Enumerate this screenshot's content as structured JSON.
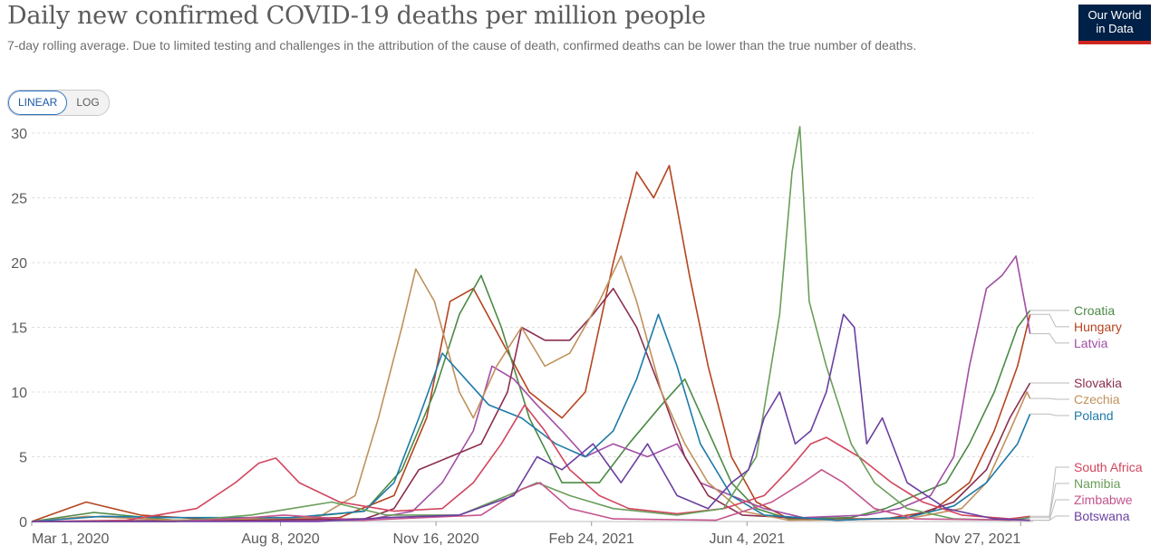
{
  "header": {
    "title": "Daily new confirmed COVID-19 deaths per million people",
    "subtitle": "7-day rolling average. Due to limited testing and challenges in the attribution of the cause of death, confirmed deaths can be lower than the true number of deaths.",
    "logo_line1": "Our World",
    "logo_line2": "in Data"
  },
  "scale_toggle": {
    "linear_label": "LINEAR",
    "log_label": "LOG",
    "selected": "LINEAR"
  },
  "chart_data": {
    "type": "line",
    "title": "Daily new confirmed COVID-19 deaths per million people",
    "xlim": [
      "2020-03-01",
      "2021-12-05"
    ],
    "ylim": [
      0,
      30
    ],
    "y_ticks": [
      0,
      5,
      10,
      15,
      20,
      25,
      30
    ],
    "x_ticks": [
      {
        "date": "2020-03-01",
        "label": "Mar 1, 2020"
      },
      {
        "date": "2020-08-08",
        "label": "Aug 8, 2020"
      },
      {
        "date": "2020-11-16",
        "label": "Nov 16, 2020"
      },
      {
        "date": "2021-02-24",
        "label": "Feb 24, 2021"
      },
      {
        "date": "2021-06-04",
        "label": "Jun 4, 2021"
      },
      {
        "date": "2021-11-27",
        "label": "Nov 27, 2021"
      }
    ],
    "grid": true,
    "series": [
      {
        "name": "Hungary",
        "color": "#b5441f",
        "points": [
          [
            "2020-03-01",
            0
          ],
          [
            "2020-04-05",
            1.5
          ],
          [
            "2020-05-10",
            0.5
          ],
          [
            "2020-07-01",
            0.1
          ],
          [
            "2020-09-15",
            0.3
          ],
          [
            "2020-10-20",
            2
          ],
          [
            "2020-11-10",
            8
          ],
          [
            "2020-11-25",
            17
          ],
          [
            "2020-12-10",
            18
          ],
          [
            "2020-12-28",
            14
          ],
          [
            "2021-01-15",
            10
          ],
          [
            "2021-02-05",
            8
          ],
          [
            "2021-02-20",
            10
          ],
          [
            "2021-03-10",
            20
          ],
          [
            "2021-03-25",
            27
          ],
          [
            "2021-04-05",
            25
          ],
          [
            "2021-04-15",
            27.5
          ],
          [
            "2021-04-28",
            19
          ],
          [
            "2021-05-10",
            12
          ],
          [
            "2021-05-25",
            5
          ],
          [
            "2021-06-10",
            1.5
          ],
          [
            "2021-07-01",
            0.2
          ],
          [
            "2021-09-01",
            0.2
          ],
          [
            "2021-10-01",
            0.8
          ],
          [
            "2021-10-25",
            3
          ],
          [
            "2021-11-10",
            7
          ],
          [
            "2021-11-25",
            12
          ],
          [
            "2021-12-03",
            16
          ]
        ]
      },
      {
        "name": "Croatia",
        "color": "#4c8a46",
        "points": [
          [
            "2020-03-01",
            0
          ],
          [
            "2020-04-10",
            0.7
          ],
          [
            "2020-06-01",
            0.1
          ],
          [
            "2020-08-20",
            0.3
          ],
          [
            "2020-10-01",
            0.8
          ],
          [
            "2020-10-25",
            4
          ],
          [
            "2020-11-15",
            10
          ],
          [
            "2020-12-01",
            16
          ],
          [
            "2020-12-15",
            19
          ],
          [
            "2020-12-28",
            15
          ],
          [
            "2021-01-15",
            8
          ],
          [
            "2021-02-05",
            3
          ],
          [
            "2021-03-01",
            3
          ],
          [
            "2021-03-20",
            6
          ],
          [
            "2021-04-10",
            9
          ],
          [
            "2021-04-25",
            11
          ],
          [
            "2021-05-10",
            7
          ],
          [
            "2021-05-25",
            3
          ],
          [
            "2021-06-10",
            1
          ],
          [
            "2021-07-01",
            0.2
          ],
          [
            "2021-08-10",
            0.3
          ],
          [
            "2021-09-01",
            1
          ],
          [
            "2021-09-20",
            2
          ],
          [
            "2021-10-10",
            3
          ],
          [
            "2021-10-25",
            6
          ],
          [
            "2021-11-10",
            10
          ],
          [
            "2021-11-25",
            15
          ],
          [
            "2021-12-03",
            16.3
          ]
        ]
      },
      {
        "name": "Latvia",
        "color": "#a24ea4",
        "points": [
          [
            "2020-03-01",
            0
          ],
          [
            "2020-10-01",
            0.1
          ],
          [
            "2020-11-01",
            0.8
          ],
          [
            "2020-11-20",
            3
          ],
          [
            "2020-12-10",
            7
          ],
          [
            "2020-12-22",
            12
          ],
          [
            "2021-01-05",
            11
          ],
          [
            "2021-01-20",
            9
          ],
          [
            "2021-02-05",
            7
          ],
          [
            "2021-02-20",
            5
          ],
          [
            "2021-03-10",
            6
          ],
          [
            "2021-04-01",
            5
          ],
          [
            "2021-04-20",
            6
          ],
          [
            "2021-05-05",
            3
          ],
          [
            "2021-05-25",
            2
          ],
          [
            "2021-06-15",
            1
          ],
          [
            "2021-07-10",
            0.3
          ],
          [
            "2021-08-20",
            0.5
          ],
          [
            "2021-09-10",
            1
          ],
          [
            "2021-09-30",
            2
          ],
          [
            "2021-10-15",
            5
          ],
          [
            "2021-10-25",
            12
          ],
          [
            "2021-11-05",
            18
          ],
          [
            "2021-11-15",
            19
          ],
          [
            "2021-11-24",
            20.5
          ],
          [
            "2021-12-01",
            16
          ],
          [
            "2021-12-03",
            14.5
          ]
        ]
      },
      {
        "name": "Slovakia",
        "color": "#8b2e4e",
        "points": [
          [
            "2020-03-01",
            0
          ],
          [
            "2020-10-01",
            0.2
          ],
          [
            "2020-10-20",
            1
          ],
          [
            "2020-11-05",
            4
          ],
          [
            "2020-11-25",
            5
          ],
          [
            "2020-12-15",
            6
          ],
          [
            "2021-01-01",
            10
          ],
          [
            "2021-01-10",
            15
          ],
          [
            "2021-01-25",
            14
          ],
          [
            "2021-02-10",
            14
          ],
          [
            "2021-02-25",
            16
          ],
          [
            "2021-03-10",
            18
          ],
          [
            "2021-03-25",
            15
          ],
          [
            "2021-04-10",
            10
          ],
          [
            "2021-04-25",
            5
          ],
          [
            "2021-05-10",
            2
          ],
          [
            "2021-06-01",
            0.5
          ],
          [
            "2021-08-01",
            0.1
          ],
          [
            "2021-09-15",
            0.3
          ],
          [
            "2021-10-15",
            1.5
          ],
          [
            "2021-11-05",
            4
          ],
          [
            "2021-11-20",
            8
          ],
          [
            "2021-12-03",
            10.7
          ]
        ]
      },
      {
        "name": "Czechia",
        "color": "#c0915c",
        "points": [
          [
            "2020-03-01",
            0
          ],
          [
            "2020-04-05",
            0.4
          ],
          [
            "2020-06-01",
            0.1
          ],
          [
            "2020-09-01",
            0.3
          ],
          [
            "2020-09-25",
            2
          ],
          [
            "2020-10-10",
            8
          ],
          [
            "2020-10-25",
            15
          ],
          [
            "2020-11-03",
            19.5
          ],
          [
            "2020-11-15",
            17
          ],
          [
            "2020-12-01",
            10
          ],
          [
            "2020-12-10",
            8
          ],
          [
            "2020-12-25",
            12
          ],
          [
            "2021-01-10",
            15
          ],
          [
            "2021-01-25",
            12
          ],
          [
            "2021-02-10",
            13
          ],
          [
            "2021-03-01",
            17
          ],
          [
            "2021-03-15",
            20.5
          ],
          [
            "2021-03-25",
            17
          ],
          [
            "2021-04-10",
            10
          ],
          [
            "2021-04-25",
            6
          ],
          [
            "2021-05-10",
            3
          ],
          [
            "2021-06-01",
            0.8
          ],
          [
            "2021-07-01",
            0.1
          ],
          [
            "2021-09-15",
            0.2
          ],
          [
            "2021-10-20",
            1
          ],
          [
            "2021-11-05",
            3
          ],
          [
            "2021-11-20",
            7
          ],
          [
            "2021-12-01",
            10
          ],
          [
            "2021-12-03",
            9.5
          ]
        ]
      },
      {
        "name": "Poland",
        "color": "#1d7aa8",
        "points": [
          [
            "2020-03-01",
            0
          ],
          [
            "2020-04-15",
            0.4
          ],
          [
            "2020-06-01",
            0.3
          ],
          [
            "2020-08-15",
            0.3
          ],
          [
            "2020-10-01",
            0.8
          ],
          [
            "2020-10-20",
            3
          ],
          [
            "2020-11-05",
            8
          ],
          [
            "2020-11-20",
            13
          ],
          [
            "2020-12-05",
            11
          ],
          [
            "2020-12-20",
            9
          ],
          [
            "2021-01-10",
            8
          ],
          [
            "2021-02-01",
            6
          ],
          [
            "2021-02-20",
            5
          ],
          [
            "2021-03-10",
            7
          ],
          [
            "2021-03-25",
            11
          ],
          [
            "2021-04-08",
            16
          ],
          [
            "2021-04-20",
            12
          ],
          [
            "2021-05-05",
            6
          ],
          [
            "2021-05-25",
            2
          ],
          [
            "2021-06-15",
            0.5
          ],
          [
            "2021-08-01",
            0.1
          ],
          [
            "2021-09-15",
            0.3
          ],
          [
            "2021-10-15",
            1.2
          ],
          [
            "2021-11-05",
            3
          ],
          [
            "2021-11-25",
            6
          ],
          [
            "2021-12-03",
            8.3
          ]
        ]
      },
      {
        "name": "South Africa",
        "color": "#d2465e",
        "points": [
          [
            "2020-03-01",
            0
          ],
          [
            "2020-05-01",
            0.1
          ],
          [
            "2020-06-15",
            1
          ],
          [
            "2020-07-10",
            3
          ],
          [
            "2020-07-25",
            4.5
          ],
          [
            "2020-08-05",
            4.9
          ],
          [
            "2020-08-20",
            3
          ],
          [
            "2020-09-15",
            1.5
          ],
          [
            "2020-10-20",
            0.8
          ],
          [
            "2020-11-20",
            1
          ],
          [
            "2020-12-10",
            3
          ],
          [
            "2020-12-28",
            6
          ],
          [
            "2021-01-12",
            9
          ],
          [
            "2021-01-25",
            7
          ],
          [
            "2021-02-10",
            4
          ],
          [
            "2021-03-01",
            2
          ],
          [
            "2021-03-20",
            1
          ],
          [
            "2021-04-20",
            0.6
          ],
          [
            "2021-05-20",
            1
          ],
          [
            "2021-06-15",
            2
          ],
          [
            "2021-07-01",
            4
          ],
          [
            "2021-07-15",
            6
          ],
          [
            "2021-07-25",
            6.5
          ],
          [
            "2021-08-15",
            5
          ],
          [
            "2021-09-05",
            3
          ],
          [
            "2021-09-25",
            1.5
          ],
          [
            "2021-10-20",
            0.5
          ],
          [
            "2021-11-20",
            0.2
          ],
          [
            "2021-12-03",
            0.4
          ]
        ]
      },
      {
        "name": "Namibia",
        "color": "#6a9e5a",
        "points": [
          [
            "2020-03-01",
            0
          ],
          [
            "2020-06-01",
            0
          ],
          [
            "2020-07-20",
            0.5
          ],
          [
            "2020-08-15",
            1
          ],
          [
            "2020-09-10",
            1.5
          ],
          [
            "2020-10-15",
            0.5
          ],
          [
            "2020-12-01",
            0.5
          ],
          [
            "2021-01-01",
            2
          ],
          [
            "2021-01-20",
            3
          ],
          [
            "2021-02-10",
            2
          ],
          [
            "2021-03-10",
            1
          ],
          [
            "2021-04-20",
            0.5
          ],
          [
            "2021-05-20",
            1
          ],
          [
            "2021-06-10",
            5
          ],
          [
            "2021-06-25",
            16
          ],
          [
            "2021-07-03",
            27
          ],
          [
            "2021-07-08",
            30.5
          ],
          [
            "2021-07-14",
            17
          ],
          [
            "2021-07-25",
            12
          ],
          [
            "2021-08-10",
            6
          ],
          [
            "2021-08-25",
            3
          ],
          [
            "2021-09-15",
            1
          ],
          [
            "2021-10-15",
            0.2
          ],
          [
            "2021-11-20",
            0.1
          ],
          [
            "2021-12-03",
            0.3
          ]
        ]
      },
      {
        "name": "Zimbabwe",
        "color": "#c4548c",
        "points": [
          [
            "2020-03-01",
            0
          ],
          [
            "2020-06-01",
            0
          ],
          [
            "2020-07-20",
            0.3
          ],
          [
            "2020-08-10",
            0.5
          ],
          [
            "2020-10-01",
            0.1
          ],
          [
            "2020-12-15",
            0.5
          ],
          [
            "2021-01-10",
            2.5
          ],
          [
            "2021-01-22",
            3
          ],
          [
            "2021-02-10",
            1
          ],
          [
            "2021-03-10",
            0.2
          ],
          [
            "2021-05-15",
            0.1
          ],
          [
            "2021-06-20",
            1.5
          ],
          [
            "2021-07-10",
            3
          ],
          [
            "2021-07-22",
            4
          ],
          [
            "2021-08-05",
            3
          ],
          [
            "2021-08-25",
            1
          ],
          [
            "2021-09-20",
            0.2
          ],
          [
            "2021-12-03",
            0.1
          ]
        ]
      },
      {
        "name": "Botswana",
        "color": "#6a3fa0",
        "points": [
          [
            "2020-03-01",
            0
          ],
          [
            "2020-09-01",
            0
          ],
          [
            "2020-10-15",
            0.3
          ],
          [
            "2020-12-01",
            0.5
          ],
          [
            "2021-01-05",
            2
          ],
          [
            "2021-01-20",
            5
          ],
          [
            "2021-02-05",
            4
          ],
          [
            "2021-02-25",
            6
          ],
          [
            "2021-03-15",
            3
          ],
          [
            "2021-04-01",
            6
          ],
          [
            "2021-04-20",
            2
          ],
          [
            "2021-05-10",
            1
          ],
          [
            "2021-05-25",
            3
          ],
          [
            "2021-06-05",
            4
          ],
          [
            "2021-06-15",
            8
          ],
          [
            "2021-06-25",
            10
          ],
          [
            "2021-07-05",
            6
          ],
          [
            "2021-07-15",
            7
          ],
          [
            "2021-07-25",
            10
          ],
          [
            "2021-08-05",
            16
          ],
          [
            "2021-08-12",
            15
          ],
          [
            "2021-08-20",
            6
          ],
          [
            "2021-08-30",
            8
          ],
          [
            "2021-09-15",
            3
          ],
          [
            "2021-10-10",
            1
          ],
          [
            "2021-11-10",
            0.2
          ],
          [
            "2021-12-03",
            0.1
          ]
        ]
      }
    ]
  }
}
